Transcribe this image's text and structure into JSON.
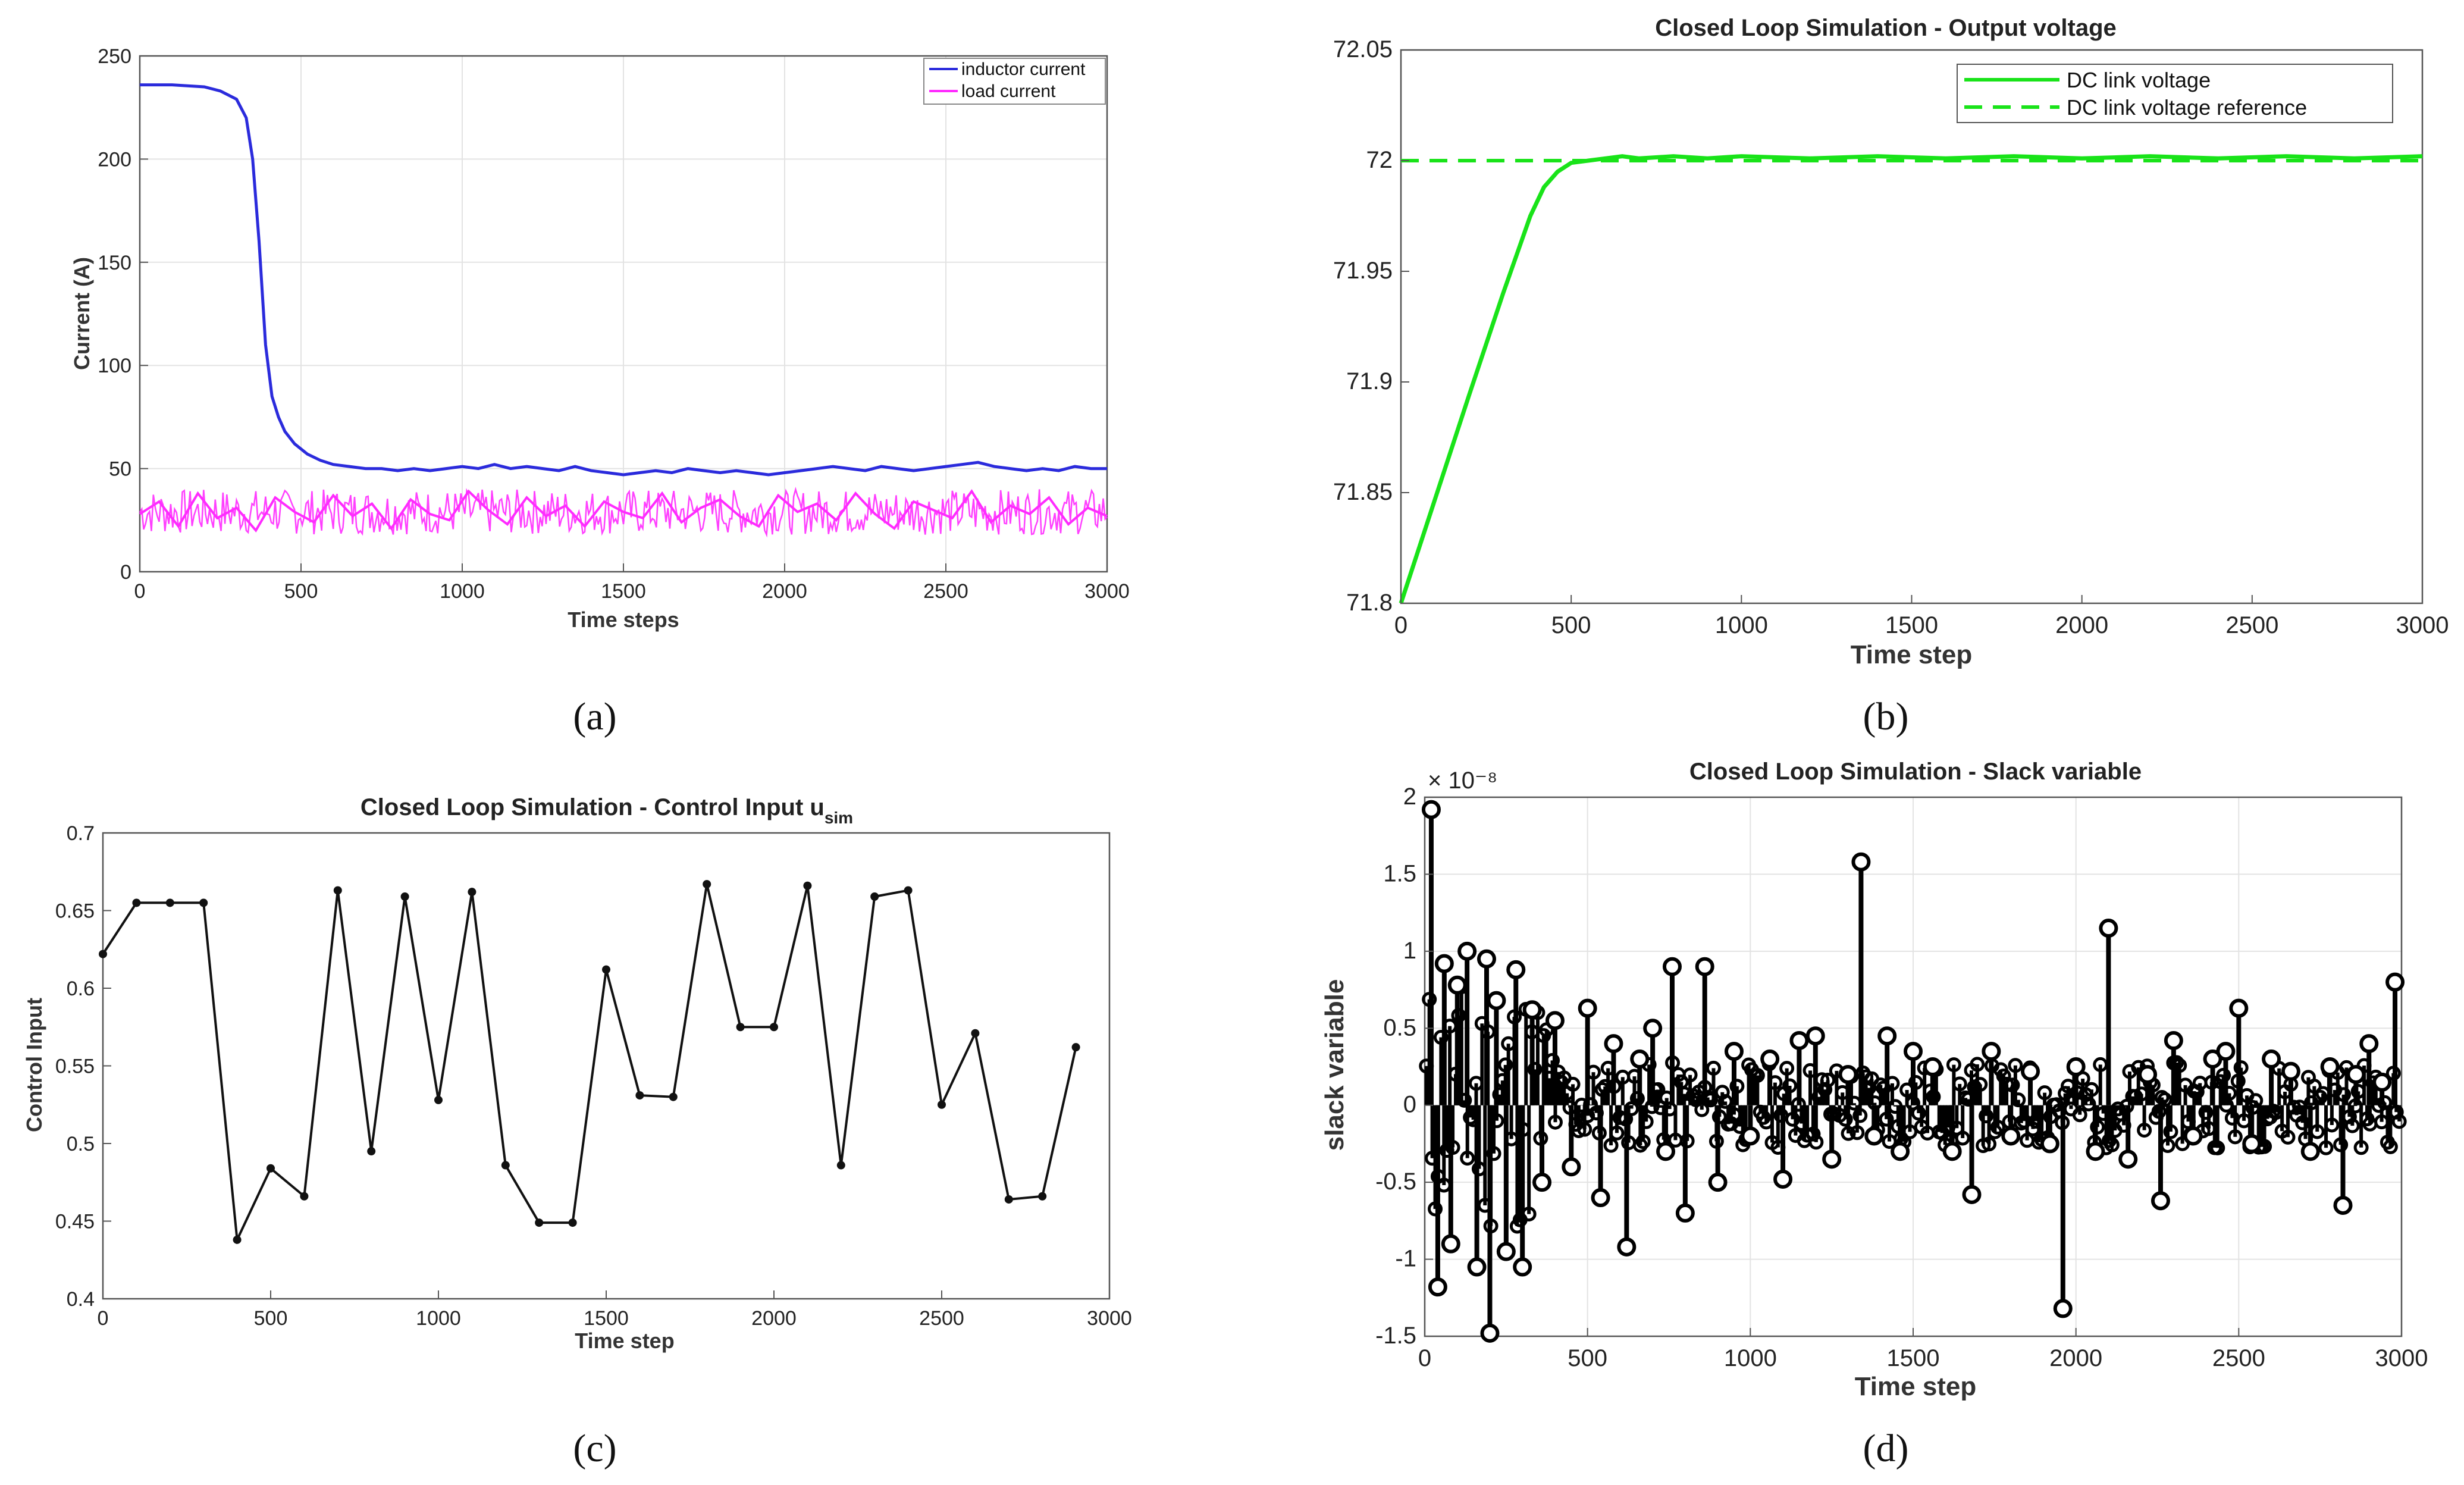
{
  "chart_data": [
    {
      "id": "a",
      "type": "line",
      "caption": "(a)",
      "title": "",
      "xlabel": "Time steps",
      "ylabel": "Current (A)",
      "xlim": [
        0,
        3000
      ],
      "ylim": [
        0,
        250
      ],
      "xticks": [
        0,
        500,
        1000,
        1500,
        2000,
        2500,
        3000
      ],
      "yticks": [
        0,
        50,
        100,
        150,
        200,
        250
      ],
      "grid": true,
      "legend_position": "top-right",
      "series": [
        {
          "name": "inductor current",
          "color": "#2b2bdc",
          "x": [
            0,
            100,
            200,
            250,
            300,
            330,
            350,
            370,
            390,
            410,
            430,
            450,
            480,
            520,
            560,
            600,
            650,
            700,
            750,
            800,
            850,
            900,
            950,
            1000,
            1050,
            1100,
            1150,
            1200,
            1250,
            1300,
            1350,
            1400,
            1450,
            1500,
            1550,
            1600,
            1650,
            1700,
            1750,
            1800,
            1850,
            1900,
            1950,
            2000,
            2050,
            2100,
            2150,
            2200,
            2250,
            2300,
            2350,
            2400,
            2450,
            2500,
            2550,
            2600,
            2650,
            2700,
            2750,
            2800,
            2850,
            2900,
            2950,
            3000
          ],
          "values": [
            236,
            236,
            235,
            233,
            229,
            220,
            200,
            160,
            110,
            85,
            75,
            68,
            62,
            57,
            54,
            52,
            51,
            50,
            50,
            49,
            50,
            49,
            50,
            51,
            50,
            52,
            50,
            51,
            50,
            49,
            51,
            49,
            48,
            47,
            48,
            49,
            48,
            50,
            49,
            48,
            49,
            48,
            47,
            48,
            49,
            50,
            51,
            50,
            49,
            51,
            50,
            49,
            50,
            51,
            52,
            53,
            51,
            50,
            49,
            50,
            49,
            51,
            50,
            50
          ]
        },
        {
          "name": "load current",
          "color": "#ff2bff",
          "x": [
            0,
            60,
            120,
            180,
            240,
            300,
            360,
            420,
            480,
            540,
            600,
            660,
            720,
            780,
            840,
            900,
            960,
            1020,
            1080,
            1140,
            1200,
            1260,
            1320,
            1380,
            1440,
            1500,
            1560,
            1620,
            1680,
            1740,
            1800,
            1860,
            1920,
            1980,
            2040,
            2100,
            2160,
            2220,
            2280,
            2340,
            2400,
            2460,
            2520,
            2580,
            2640,
            2700,
            2760,
            2820,
            2880,
            2940,
            3000
          ],
          "values": [
            28,
            34,
            22,
            38,
            26,
            31,
            20,
            36,
            29,
            24,
            37,
            27,
            33,
            21,
            35,
            28,
            25,
            39,
            30,
            23,
            36,
            27,
            32,
            22,
            34,
            29,
            26,
            38,
            24,
            31,
            35,
            27,
            22,
            37,
            29,
            33,
            25,
            38,
            28,
            21,
            34,
            30,
            26,
            39,
            24,
            32,
            28,
            36,
            23,
            31,
            27
          ]
        }
      ]
    },
    {
      "id": "b",
      "type": "line",
      "caption": "(b)",
      "title": "Closed Loop Simulation - Output voltage",
      "xlabel": "Time step",
      "ylabel": "",
      "xlim": [
        0,
        3000
      ],
      "ylim": [
        71.8,
        72.05
      ],
      "xticks": [
        0,
        500,
        1000,
        1500,
        2000,
        2500,
        3000
      ],
      "yticks": [
        71.8,
        71.85,
        71.9,
        71.95,
        72,
        72.05
      ],
      "grid": false,
      "legend_position": "top-right",
      "series": [
        {
          "name": "DC link voltage",
          "color": "#19e319",
          "style": "solid",
          "x": [
            0,
            100,
            200,
            300,
            380,
            420,
            460,
            500,
            550,
            600,
            650,
            700,
            800,
            900,
            1000,
            1200,
            1400,
            1600,
            1800,
            2000,
            2200,
            2400,
            2600,
            2800,
            3000
          ],
          "values": [
            71.8,
            71.847,
            71.894,
            71.94,
            71.975,
            71.988,
            71.995,
            71.999,
            72.0,
            72.001,
            72.002,
            72.001,
            72.002,
            72.001,
            72.002,
            72.001,
            72.002,
            72.001,
            72.002,
            72.001,
            72.002,
            72.001,
            72.002,
            72.001,
            72.002
          ]
        },
        {
          "name": "DC link voltage reference",
          "color": "#19e319",
          "style": "dashed",
          "x": [
            0,
            3000
          ],
          "values": [
            72,
            72
          ]
        }
      ]
    },
    {
      "id": "c",
      "type": "line",
      "caption": "(c)",
      "title": "Closed Loop Simulation - Control Input u",
      "title_sub": "sim",
      "xlabel": "Time step",
      "ylabel": "Control Input",
      "xlim": [
        0,
        3000
      ],
      "ylim": [
        0.4,
        0.7
      ],
      "xticks": [
        0,
        500,
        1000,
        1500,
        2000,
        2500,
        3000
      ],
      "yticks": [
        0.4,
        0.45,
        0.5,
        0.55,
        0.6,
        0.65,
        0.7
      ],
      "grid": false,
      "series": [
        {
          "name": "u_sim",
          "color": "#111111",
          "x": [
            0,
            100,
            200,
            300,
            400,
            500,
            600,
            700,
            800,
            900,
            1000,
            1100,
            1200,
            1300,
            1400,
            1500,
            1600,
            1700,
            1800,
            1900,
            2000,
            2100,
            2200,
            2300,
            2400,
            2500,
            2600,
            2700,
            2800,
            2900
          ],
          "values": [
            0.622,
            0.655,
            0.655,
            0.655,
            0.438,
            0.484,
            0.466,
            0.663,
            0.495,
            0.659,
            0.528,
            0.662,
            0.486,
            0.449,
            0.449,
            0.612,
            0.531,
            0.53,
            0.667,
            0.575,
            0.575,
            0.666,
            0.486,
            0.659,
            0.663,
            0.525,
            0.571,
            0.464,
            0.466,
            0.562
          ]
        }
      ]
    },
    {
      "id": "d",
      "type": "scatter",
      "caption": "(d)",
      "title": "Closed Loop Simulation - Slack variable",
      "exponent": "× 10⁻⁸",
      "xlabel": "Time step",
      "ylabel": "slack variable",
      "xlim": [
        0,
        3000
      ],
      "ylim": [
        -1.5,
        2
      ],
      "xticks": [
        0,
        500,
        1000,
        1500,
        2000,
        2500,
        3000
      ],
      "yticks": [
        -1.5,
        -1,
        -0.5,
        0,
        0.5,
        1,
        1.5,
        2
      ],
      "grid": true,
      "series": [
        {
          "name": "slack variable",
          "color": "#000000",
          "x": [
            20,
            40,
            60,
            80,
            100,
            130,
            160,
            190,
            200,
            220,
            250,
            280,
            300,
            330,
            360,
            400,
            450,
            500,
            540,
            580,
            620,
            660,
            700,
            740,
            760,
            800,
            860,
            900,
            950,
            1000,
            1060,
            1100,
            1150,
            1200,
            1250,
            1300,
            1340,
            1380,
            1420,
            1460,
            1500,
            1560,
            1620,
            1680,
            1740,
            1800,
            1860,
            1920,
            1960,
            2000,
            2060,
            2100,
            2160,
            2220,
            2260,
            2300,
            2360,
            2420,
            2460,
            2500,
            2540,
            2600,
            2660,
            2720,
            2780,
            2820,
            2860,
            2900,
            2940,
            2980
          ],
          "values": [
            1.92,
            -1.18,
            0.92,
            -0.9,
            0.78,
            1.0,
            -1.05,
            0.95,
            -1.48,
            0.68,
            -0.95,
            0.88,
            -1.05,
            0.62,
            -0.5,
            0.55,
            -0.4,
            0.63,
            -0.6,
            0.4,
            -0.92,
            0.3,
            0.5,
            -0.3,
            0.9,
            -0.7,
            0.9,
            -0.5,
            0.35,
            -0.2,
            0.3,
            -0.48,
            0.42,
            0.45,
            -0.35,
            0.2,
            1.58,
            -0.2,
            0.45,
            -0.3,
            0.35,
            0.25,
            -0.3,
            -0.58,
            0.35,
            -0.2,
            0.22,
            -0.25,
            -1.32,
            0.25,
            -0.3,
            1.15,
            -0.35,
            0.2,
            -0.62,
            0.42,
            -0.2,
            0.3,
            0.35,
            0.63,
            -0.25,
            0.3,
            0.22,
            -0.3,
            0.25,
            -0.65,
            0.2,
            0.4,
            0.15,
            0.8
          ]
        }
      ]
    }
  ]
}
